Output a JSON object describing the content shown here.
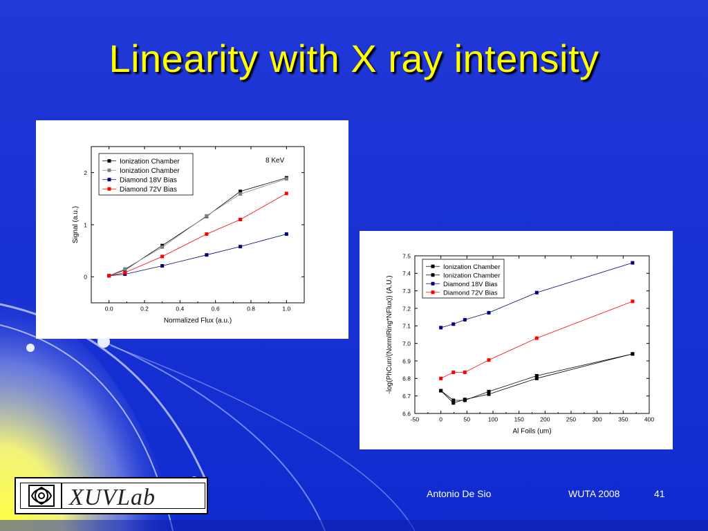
{
  "slide": {
    "title": "Linearity with X ray intensity",
    "author": "Antonio De Sio",
    "event": "WUTA 2008",
    "page": "41",
    "logo_text": "XUVLab"
  },
  "colors": {
    "background": "#1a33d6",
    "title": "#ffff00",
    "ion1": "#000000",
    "ion2": "#808080",
    "d18": "#000080",
    "d72": "#ff0000"
  },
  "chart_data": [
    {
      "type": "line",
      "xlabel": "Normalized Flux (a.u.)",
      "ylabel": "Signal (a.u.)",
      "annotation": "8 KeV",
      "xlim": [
        -0.1,
        1.1
      ],
      "ylim": [
        -0.5,
        2.5
      ],
      "xticks": [
        "0.0",
        "0.2",
        "0.4",
        "0.6",
        "0.8",
        "1.0"
      ],
      "yticks": [
        "0",
        "1",
        "2"
      ],
      "legend_position": "top-left",
      "series": [
        {
          "name": "Ionization Chamber",
          "color": "#000000",
          "x": [
            0,
            0.09,
            0.3,
            0.55,
            0.74,
            1.0
          ],
          "y": [
            0.02,
            0.13,
            0.6,
            1.16,
            1.64,
            1.9
          ]
        },
        {
          "name": "Ionization Chamber",
          "color": "#808080",
          "x": [
            0,
            0.09,
            0.3,
            0.55,
            0.74,
            1.0
          ],
          "y": [
            0.02,
            0.15,
            0.57,
            1.17,
            1.59,
            1.88
          ]
        },
        {
          "name": "Diamond 18V Bias",
          "color": "#000080",
          "x": [
            0,
            0.09,
            0.3,
            0.55,
            0.74,
            1.0
          ],
          "y": [
            0.02,
            0.05,
            0.21,
            0.42,
            0.58,
            0.82
          ]
        },
        {
          "name": "Diamond 72V Bias",
          "color": "#ff0000",
          "x": [
            0,
            0.09,
            0.3,
            0.55,
            0.74,
            1.0
          ],
          "y": [
            0.02,
            0.08,
            0.39,
            0.82,
            1.1,
            1.6
          ]
        }
      ]
    },
    {
      "type": "line",
      "xlabel": "Al Foils (um)",
      "ylabel": "-log(PhCurr/(NormIRing*NFlux))  (A.U.)",
      "xlim": [
        -50,
        400
      ],
      "ylim": [
        6.6,
        7.5
      ],
      "xticks": [
        "-50",
        "0",
        "50",
        "100",
        "150",
        "200",
        "250",
        "300",
        "350",
        "400"
      ],
      "yticks": [
        "6.6",
        "6.7",
        "6.8",
        "6.9",
        "7.0",
        "7.1",
        "7.2",
        "7.3",
        "7.4",
        "7.5"
      ],
      "legend_position": "top-left",
      "series": [
        {
          "name": "Ionization Chamber",
          "color": "#000000",
          "x": [
            0,
            24,
            46,
            92,
            184,
            368
          ],
          "y": [
            6.73,
            6.66,
            6.68,
            6.71,
            6.8,
            6.94
          ]
        },
        {
          "name": "Ionization Chamber",
          "color": "#000000",
          "x": [
            0,
            24,
            46,
            92,
            184,
            368
          ],
          "y": [
            6.73,
            6.675,
            6.675,
            6.725,
            6.815,
            6.94
          ]
        },
        {
          "name": "Diamond 18V Bias",
          "color": "#000080",
          "x": [
            0,
            24,
            46,
            92,
            184,
            368
          ],
          "y": [
            7.09,
            7.11,
            7.135,
            7.175,
            7.29,
            7.46
          ]
        },
        {
          "name": "Diamond 72V Bias",
          "color": "#ff0000",
          "x": [
            0,
            24,
            46,
            92,
            184,
            368
          ],
          "y": [
            6.8,
            6.835,
            6.835,
            6.905,
            7.03,
            7.24
          ]
        }
      ]
    }
  ]
}
